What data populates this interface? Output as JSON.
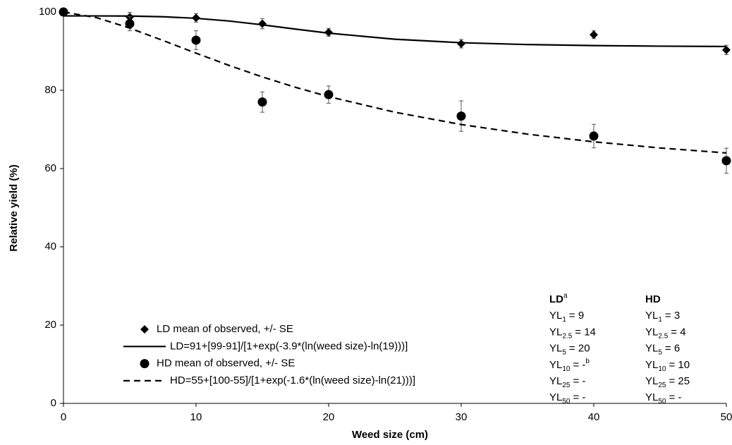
{
  "chart_data": {
    "type": "scatter",
    "x_label": "Weed size (cm)",
    "y_label": "Relative yield (%)",
    "xlim": [
      0,
      50
    ],
    "ylim": [
      0,
      100
    ],
    "xticks": [
      0,
      10,
      20,
      30,
      40,
      50
    ],
    "yticks": [
      0,
      20,
      40,
      60,
      80,
      100
    ],
    "grid": false,
    "legend": "lower left",
    "series": [
      {
        "name": "LD mean of observed, +/- SE",
        "kind": "scatter",
        "marker": "diamond",
        "color": "#000000",
        "x": [
          0,
          5,
          10,
          15,
          20,
          30,
          40,
          50
        ],
        "values": [
          100,
          98.7,
          98.5,
          97,
          94.8,
          91.9,
          94.2,
          90.3
        ],
        "errors": [
          0,
          1.2,
          1.1,
          1.3,
          1,
          1.1,
          1,
          1.2
        ]
      },
      {
        "name": "LD=91+[99-91]/[1+exp(-3.9*(ln(weed size)-ln(19)))]",
        "kind": "line",
        "dashed": false,
        "color": "#000000",
        "x": [
          0,
          2.5,
          5,
          7.5,
          10,
          12.5,
          15,
          17.5,
          20,
          25,
          30,
          35,
          40,
          45,
          50
        ],
        "values": [
          99,
          99,
          98.96,
          98.79,
          98.39,
          97.69,
          96.72,
          95.63,
          94.6,
          93.04,
          92.15,
          91.68,
          91.42,
          91.27,
          91.18
        ]
      },
      {
        "name": "HD mean of observed, +/- SE",
        "kind": "scatter",
        "marker": "circle",
        "color": "#000000",
        "x": [
          0,
          5,
          10,
          15,
          20,
          30,
          40,
          50
        ],
        "values": [
          100,
          97,
          92.8,
          77,
          78.9,
          73.4,
          68.3,
          62
        ],
        "errors": [
          0,
          1.8,
          2.4,
          2.6,
          2.2,
          3.9,
          3,
          3.2
        ]
      },
      {
        "name": "HD=55+[100-55]/[1+exp(-1.6*(ln(weed size)-ln(21)))]",
        "kind": "line",
        "dashed": true,
        "color": "#000000",
        "x": [
          0,
          2.5,
          5,
          7.5,
          10,
          12.5,
          15,
          17.5,
          20,
          25,
          30,
          35,
          40,
          45,
          50
        ],
        "values": [
          100,
          98.55,
          95.88,
          92.73,
          89.48,
          86.34,
          83.41,
          80.76,
          78.38,
          74.39,
          71.25,
          68.79,
          66.83,
          65.26,
          63.99
        ]
      }
    ],
    "annotation": {
      "prefix": "YL",
      "columns": [
        {
          "title": "LD",
          "sup": "a"
        },
        {
          "title": "HD"
        }
      ],
      "rows": [
        {
          "sub": "1",
          "cells": [
            {
              "text": "= 9"
            },
            {
              "text": "= 3"
            }
          ]
        },
        {
          "sub": "2.5",
          "cells": [
            {
              "text": "= 14"
            },
            {
              "text": "= 4"
            }
          ]
        },
        {
          "sub": "5",
          "cells": [
            {
              "text": "= 20"
            },
            {
              "text": "= 6"
            }
          ]
        },
        {
          "sub": "10",
          "cells": [
            {
              "text": "= -",
              "sup": "b"
            },
            {
              "text": "= 10"
            }
          ]
        },
        {
          "sub": "25",
          "cells": [
            {
              "text": "= -"
            },
            {
              "text": "= 25"
            }
          ]
        },
        {
          "sub": "50",
          "cells": [
            {
              "text": "= -"
            },
            {
              "text": "= -"
            }
          ]
        }
      ]
    }
  }
}
